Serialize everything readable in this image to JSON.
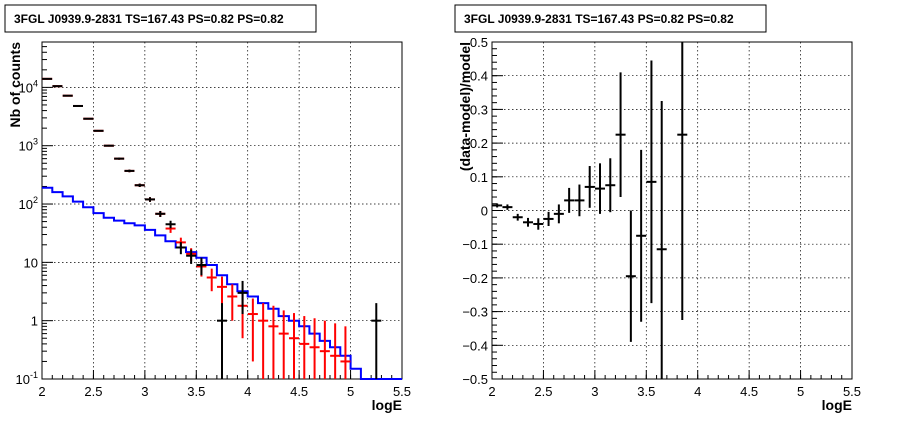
{
  "chart_data": [
    {
      "type": "step-histogram-with-errorbars",
      "title": "3FGL J0939.9-2831 TS=167.43 PS=0.82 PS=0.82",
      "xlabel": "logE",
      "ylabel": "Nb of counts",
      "xlim": [
        2,
        5.5
      ],
      "ylim": [
        0.1,
        60000
      ],
      "yscale": "log",
      "grid": true,
      "x_ticks": [
        "2",
        "2.5",
        "3",
        "3.5",
        "4",
        "4.5",
        "5",
        "5.5"
      ],
      "y_ticks": [
        {
          "v": 0.1,
          "base": "10",
          "exp": "-1",
          "label": ""
        },
        {
          "v": 1,
          "base": "",
          "exp": "",
          "label": "1"
        },
        {
          "v": 10,
          "base": "",
          "exp": "",
          "label": "10"
        },
        {
          "v": 100,
          "base": "10",
          "exp": "2",
          "label": ""
        },
        {
          "v": 1000,
          "base": "10",
          "exp": "3",
          "label": ""
        },
        {
          "v": 10000,
          "base": "10",
          "exp": "4",
          "label": ""
        }
      ],
      "bin_edges": [
        2.0,
        2.1,
        2.2,
        2.3,
        2.4,
        2.5,
        2.6,
        2.7,
        2.8,
        2.9,
        3.0,
        3.1,
        3.2,
        3.3,
        3.4,
        3.5,
        3.6,
        3.7,
        3.8,
        3.9,
        4.0,
        4.1,
        4.2,
        4.3,
        4.4,
        4.5,
        4.6,
        4.7,
        4.8,
        4.9,
        5.0,
        5.1,
        5.2,
        5.3,
        5.4,
        5.5
      ],
      "series": [
        {
          "name": "",
          "color": "#0000ff",
          "style": "step",
          "values": [
            190,
            160,
            135,
            110,
            88,
            70,
            58,
            52,
            47,
            43,
            36,
            29,
            23,
            18,
            15,
            12,
            9,
            6,
            4.2,
            3.2,
            2.6,
            2.0,
            1.6,
            1.2,
            1.0,
            0.8,
            0.6,
            0.45,
            0.35,
            0.25,
            0.15,
            0.1,
            0.1,
            0.1,
            0.1
          ]
        },
        {
          "name": "",
          "color": "#ff0000",
          "style": "errorbar",
          "x": [
            2.05,
            2.15,
            2.25,
            2.35,
            2.45,
            2.55,
            2.65,
            2.75,
            2.85,
            2.95,
            3.05,
            3.15,
            3.25,
            3.35,
            3.45,
            3.55,
            3.65,
            3.75,
            3.85,
            3.95,
            4.05,
            4.15,
            4.25,
            4.35,
            4.45,
            4.55,
            4.65,
            4.75,
            4.85,
            4.95
          ],
          "y": [
            14000,
            10500,
            7200,
            4800,
            2900,
            1800,
            1000,
            600,
            370,
            210,
            120,
            68,
            38,
            22,
            14,
            8.5,
            5.5,
            3.8,
            2.6,
            1.8,
            1.3,
            1.0,
            0.8,
            0.6,
            0.5,
            0.4,
            0.35,
            0.3,
            0.25,
            0.2
          ],
          "yerr_low": [
            118,
            102,
            85,
            69,
            54,
            42,
            32,
            24,
            19,
            14,
            11,
            8,
            6,
            4.5,
            3.5,
            2.8,
            2.3,
            1.9,
            1.6,
            1.3,
            1.1,
            1.0,
            0.8,
            0.6,
            0.5,
            0.4,
            0.35,
            0.3,
            0.25,
            0.2
          ],
          "yerr_high": [
            118,
            102,
            85,
            69,
            54,
            42,
            32,
            24,
            19,
            14,
            11,
            8,
            6,
            4.5,
            3.5,
            2.8,
            2.3,
            1.9,
            1.6,
            1.3,
            1.1,
            1.0,
            1.0,
            0.9,
            0.85,
            0.8,
            0.75,
            0.7,
            0.65,
            0.6
          ]
        },
        {
          "name": "",
          "color": "#000000",
          "style": "errorbar",
          "x": [
            2.05,
            2.15,
            2.25,
            2.35,
            2.45,
            2.55,
            2.65,
            2.75,
            2.85,
            2.95,
            3.05,
            3.15,
            3.25,
            3.35,
            3.45,
            3.55,
            3.75,
            3.95,
            5.25
          ],
          "y": [
            14000,
            10500,
            7200,
            4800,
            2900,
            1800,
            1000,
            600,
            370,
            210,
            120,
            68,
            45,
            18,
            13,
            9,
            1,
            3,
            1
          ],
          "yerr_low": [
            118,
            102,
            85,
            69,
            54,
            42,
            32,
            24,
            19,
            14,
            11,
            8,
            6.7,
            4.2,
            3.6,
            3,
            0.9,
            1.7,
            0.9
          ],
          "yerr_high": [
            118,
            102,
            85,
            69,
            54,
            42,
            32,
            24,
            19,
            14,
            11,
            8,
            6.7,
            4.2,
            3.6,
            3,
            1,
            1.8,
            1
          ]
        }
      ]
    },
    {
      "type": "errorbar",
      "title": "3FGL J0939.9-2831 TS=167.43 PS=0.82 PS=0.82",
      "xlabel": "logE",
      "ylabel": "(data-model)/model",
      "xlim": [
        2,
        5.5
      ],
      "ylim": [
        -0.5,
        0.5
      ],
      "grid": true,
      "x_ticks": [
        "2",
        "2.5",
        "3",
        "3.5",
        "4",
        "4.5",
        "5",
        "5.5"
      ],
      "y_ticks": [
        "-0.5",
        "-0.4",
        "-0.3",
        "-0.2",
        "-0.1",
        "0",
        "0.1",
        "0.2",
        "0.3",
        "0.4",
        "0.5"
      ],
      "series": [
        {
          "name": "",
          "color": "#000000",
          "x": [
            2.05,
            2.15,
            2.25,
            2.35,
            2.45,
            2.55,
            2.65,
            2.75,
            2.85,
            2.95,
            3.05,
            3.15,
            3.25,
            3.35,
            3.45,
            3.55,
            3.65,
            3.85
          ],
          "y": [
            0.015,
            0.01,
            -0.02,
            -0.035,
            -0.04,
            -0.025,
            -0.01,
            0.03,
            0.03,
            0.07,
            0.065,
            0.075,
            0.225,
            -0.195,
            -0.075,
            0.085,
            -0.115,
            0.225
          ],
          "yerr": [
            0.006,
            0.008,
            0.01,
            0.013,
            0.017,
            0.021,
            0.028,
            0.037,
            0.047,
            0.062,
            0.075,
            0.08,
            0.185,
            0.195,
            0.255,
            0.36,
            0.44,
            0.55
          ]
        }
      ]
    }
  ]
}
